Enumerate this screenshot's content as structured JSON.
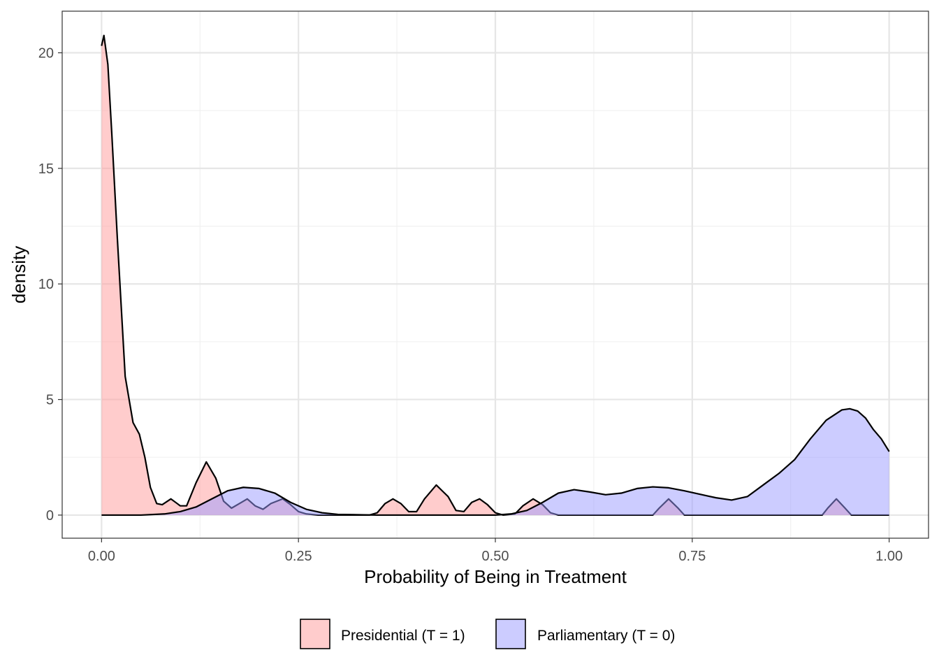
{
  "chart_data": {
    "type": "area",
    "xlabel": "Probability of Being in Treatment",
    "ylabel": "density",
    "xlim": [
      -0.05,
      1.05
    ],
    "ylim": [
      -1.0,
      21.8
    ],
    "x_ticks": [
      0,
      0.25,
      0.5,
      0.75,
      1
    ],
    "x_tick_labels": [
      "0.00",
      "0.25",
      "0.50",
      "0.75",
      "1.00"
    ],
    "y_ticks": [
      0,
      5,
      10,
      15,
      20
    ],
    "y_tick_labels": [
      "0",
      "5",
      "10",
      "15",
      "20"
    ],
    "grid": true,
    "legend_position": "bottom",
    "series": [
      {
        "name": "Presidential (T = 1)",
        "color": "#ff9999",
        "points": [
          [
            0.0,
            20.3
          ],
          [
            0.003,
            20.75
          ],
          [
            0.008,
            19.5
          ],
          [
            0.013,
            16.5
          ],
          [
            0.02,
            12.0
          ],
          [
            0.03,
            6.0
          ],
          [
            0.04,
            4.0
          ],
          [
            0.048,
            3.5
          ],
          [
            0.055,
            2.5
          ],
          [
            0.062,
            1.2
          ],
          [
            0.07,
            0.5
          ],
          [
            0.077,
            0.45
          ],
          [
            0.088,
            0.7
          ],
          [
            0.1,
            0.4
          ],
          [
            0.108,
            0.4
          ],
          [
            0.12,
            1.4
          ],
          [
            0.133,
            2.3
          ],
          [
            0.145,
            1.6
          ],
          [
            0.155,
            0.6
          ],
          [
            0.165,
            0.3
          ],
          [
            0.175,
            0.5
          ],
          [
            0.185,
            0.7
          ],
          [
            0.195,
            0.4
          ],
          [
            0.205,
            0.25
          ],
          [
            0.215,
            0.5
          ],
          [
            0.23,
            0.7
          ],
          [
            0.24,
            0.45
          ],
          [
            0.25,
            0.15
          ],
          [
            0.26,
            0.05
          ],
          [
            0.275,
            0.0
          ],
          [
            0.34,
            0.0
          ],
          [
            0.35,
            0.1
          ],
          [
            0.36,
            0.5
          ],
          [
            0.37,
            0.7
          ],
          [
            0.38,
            0.5
          ],
          [
            0.39,
            0.15
          ],
          [
            0.4,
            0.15
          ],
          [
            0.41,
            0.7
          ],
          [
            0.425,
            1.3
          ],
          [
            0.44,
            0.8
          ],
          [
            0.45,
            0.2
          ],
          [
            0.46,
            0.15
          ],
          [
            0.47,
            0.55
          ],
          [
            0.48,
            0.7
          ],
          [
            0.49,
            0.45
          ],
          [
            0.5,
            0.1
          ],
          [
            0.51,
            0.0
          ],
          [
            0.525,
            0.05
          ],
          [
            0.535,
            0.4
          ],
          [
            0.548,
            0.7
          ],
          [
            0.56,
            0.45
          ],
          [
            0.57,
            0.1
          ],
          [
            0.58,
            0.0
          ],
          [
            0.7,
            0.0
          ],
          [
            0.708,
            0.3
          ],
          [
            0.72,
            0.7
          ],
          [
            0.732,
            0.3
          ],
          [
            0.74,
            0.0
          ],
          [
            0.915,
            0.0
          ],
          [
            0.922,
            0.3
          ],
          [
            0.933,
            0.7
          ],
          [
            0.944,
            0.3
          ],
          [
            0.952,
            0.0
          ],
          [
            1.0,
            0.0
          ]
        ]
      },
      {
        "name": "Parliamentary (T = 0)",
        "color": "#9999ff",
        "points": [
          [
            0.0,
            0.0
          ],
          [
            0.05,
            0.0
          ],
          [
            0.08,
            0.05
          ],
          [
            0.1,
            0.15
          ],
          [
            0.12,
            0.35
          ],
          [
            0.14,
            0.7
          ],
          [
            0.16,
            1.05
          ],
          [
            0.18,
            1.2
          ],
          [
            0.2,
            1.15
          ],
          [
            0.22,
            0.95
          ],
          [
            0.24,
            0.55
          ],
          [
            0.26,
            0.25
          ],
          [
            0.28,
            0.1
          ],
          [
            0.3,
            0.03
          ],
          [
            0.35,
            0.0
          ],
          [
            0.5,
            0.0
          ],
          [
            0.52,
            0.05
          ],
          [
            0.54,
            0.2
          ],
          [
            0.56,
            0.55
          ],
          [
            0.58,
            0.95
          ],
          [
            0.6,
            1.1
          ],
          [
            0.62,
            1.0
          ],
          [
            0.64,
            0.88
          ],
          [
            0.66,
            0.95
          ],
          [
            0.68,
            1.15
          ],
          [
            0.7,
            1.22
          ],
          [
            0.72,
            1.18
          ],
          [
            0.74,
            1.05
          ],
          [
            0.76,
            0.9
          ],
          [
            0.78,
            0.75
          ],
          [
            0.8,
            0.65
          ],
          [
            0.82,
            0.8
          ],
          [
            0.84,
            1.3
          ],
          [
            0.86,
            1.8
          ],
          [
            0.88,
            2.4
          ],
          [
            0.9,
            3.3
          ],
          [
            0.92,
            4.1
          ],
          [
            0.94,
            4.55
          ],
          [
            0.95,
            4.6
          ],
          [
            0.96,
            4.5
          ],
          [
            0.97,
            4.2
          ],
          [
            0.98,
            3.7
          ],
          [
            0.99,
            3.3
          ],
          [
            1.0,
            2.75
          ]
        ]
      }
    ]
  }
}
